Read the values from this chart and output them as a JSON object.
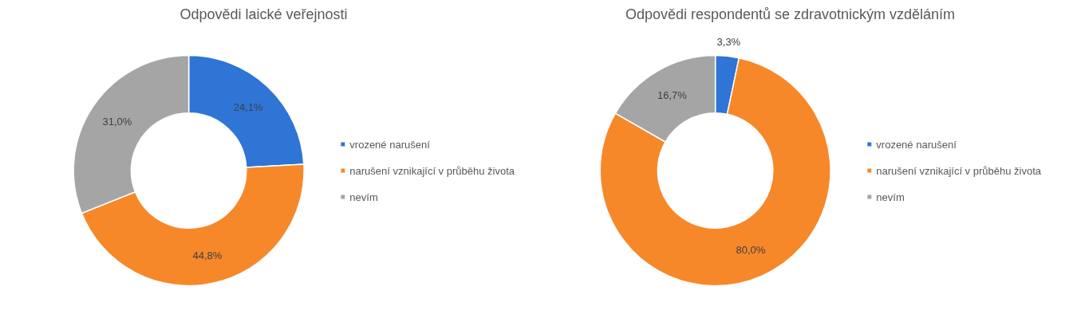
{
  "chart_data": [
    {
      "type": "donut",
      "title": "Odpovědi laické veřejnosti",
      "categories": [
        "vrozené narušení",
        "narušení vznikající v průběhu života",
        "nevím"
      ],
      "values": [
        24.1,
        44.8,
        31.0
      ],
      "value_labels": [
        "24,1%",
        "44,8%",
        "31,0%"
      ],
      "colors": [
        "#2e75d6",
        "#f6882a",
        "#a5a5a5"
      ],
      "legend": "right"
    },
    {
      "type": "donut",
      "title": "Odpovědi respondentů se zdravotnickým vzděláním",
      "categories": [
        "vrozené narušení",
        "narušení vznikající v průběhu života",
        "nevím"
      ],
      "values": [
        3.3,
        80.0,
        16.7
      ],
      "value_labels": [
        "3,3%",
        "80,0%",
        "16,7%"
      ],
      "colors": [
        "#2e75d6",
        "#f6882a",
        "#a5a5a5"
      ],
      "legend": "right"
    }
  ]
}
